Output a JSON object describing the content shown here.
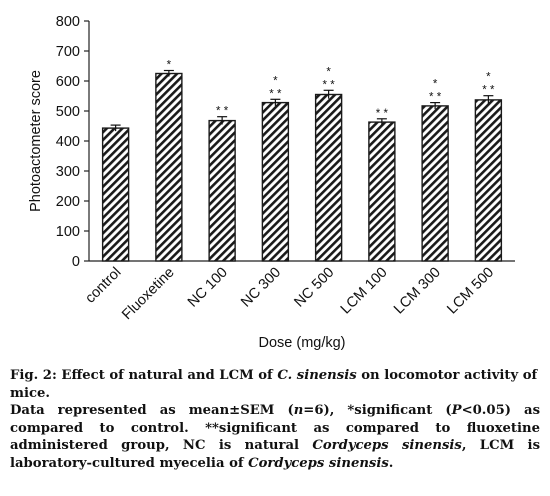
{
  "chart_data": {
    "type": "bar",
    "categories": [
      "control",
      "Fluoxetine",
      "NC 100",
      "NC 300",
      "NC 500",
      "LCM 100",
      "LCM 300",
      "LCM 500"
    ],
    "values": [
      443,
      625,
      468,
      528,
      555,
      463,
      517,
      537
    ],
    "errors": [
      10,
      10,
      13,
      11,
      14,
      11,
      11,
      14
    ],
    "annotations": [
      [],
      [
        "*"
      ],
      [
        "* *"
      ],
      [
        "* *",
        "*"
      ],
      [
        "* *",
        "*"
      ],
      [
        "* *"
      ],
      [
        "* *",
        "*"
      ],
      [
        "* *",
        "*"
      ]
    ],
    "xlabel": "Dose (mg/kg)",
    "ylabel": "Photoactometer score",
    "ylim": [
      0,
      800
    ],
    "yticks": [
      0,
      100,
      200,
      300,
      400,
      500,
      600,
      700,
      800
    ],
    "grid": false,
    "bar_pattern": "diagonal-hatch",
    "colors": {
      "bar_stroke": "#1a1a1a",
      "hatch": "#1a1a1a",
      "axis": "#222222"
    }
  },
  "caption": {
    "fig_prefix": "Fig. 2: Effect of natural and LCM of ",
    "fig_species": "C. sinensis",
    "fig_suffix": " on locomotor activity of mice.",
    "n1": "Data represented as mean±SEM (",
    "n_var": "n",
    "n2": "=6), *significant (",
    "p_var": "P",
    "n3": "<0.05) as compared to control. **significant as compared to fluoxetine administered group, NC is natural ",
    "nc_species": "Cordyceps sinensis",
    "n4": ", LCM is laboratory-cultured myecelia of ",
    "lcm_species": "Cordyceps sinensis",
    "n5": "."
  }
}
